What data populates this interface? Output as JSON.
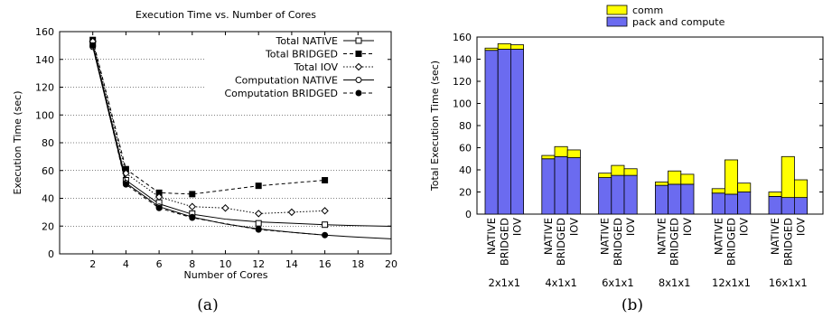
{
  "chart_data": [
    {
      "type": "line",
      "title": "Execution Time vs. Number of Cores",
      "xlabel": "Number of Cores",
      "ylabel": "Execution Time (sec)",
      "xlim": [
        0,
        20
      ],
      "ylim": [
        0,
        160
      ],
      "xticks": [
        2,
        4,
        6,
        8,
        10,
        12,
        14,
        16,
        18,
        20
      ],
      "yticks": [
        0,
        20,
        40,
        60,
        80,
        100,
        120,
        140,
        160
      ],
      "grid": "horizontal-dotted",
      "legend_position": "top-right",
      "caption": "(a)",
      "series": [
        {
          "name": "Total NATIVE",
          "style": "solid",
          "marker": "open-square",
          "x": [
            2,
            4,
            6,
            8,
            12,
            16
          ],
          "y": [
            151,
            53,
            37,
            29,
            22,
            21
          ],
          "fit": {
            "x": [
              2,
              4,
              6,
              8,
              10,
              12,
              14,
              16,
              18,
              20
            ],
            "y": [
              151,
              53,
              36,
              28.5,
              25,
              23,
              22,
              21,
              20.3,
              19.8
            ]
          }
        },
        {
          "name": "Total BRIDGED",
          "style": "dashed",
          "marker": "filled-square",
          "x": [
            2,
            4,
            6,
            8,
            12,
            16
          ],
          "y": [
            154,
            61,
            44,
            43,
            49,
            53
          ],
          "fit": {
            "x": [
              2,
              4,
              6,
              8,
              12,
              16
            ],
            "y": [
              154,
              61,
              44,
              43,
              49,
              53
            ]
          }
        },
        {
          "name": "Total IOV",
          "style": "dotted",
          "marker": "diamond",
          "x": [
            2,
            4,
            6,
            8,
            10,
            12,
            14,
            16
          ],
          "y": [
            153,
            58,
            41,
            34,
            33,
            29,
            30,
            31
          ],
          "fit": {
            "x": [
              2,
              4,
              6,
              8,
              10,
              12,
              14,
              16
            ],
            "y": [
              153,
              58,
              41,
              34,
              33,
              29,
              30,
              31
            ]
          }
        },
        {
          "name": "Computation NATIVE",
          "style": "solid",
          "marker": "open-circle",
          "x": [
            2,
            4,
            6,
            8,
            12
          ],
          "y": [
            149,
            51,
            34,
            26.5,
            18
          ],
          "fit": {
            "x": [
              2,
              4,
              6,
              8,
              10,
              12,
              14,
              16,
              18,
              20
            ],
            "y": [
              149,
              51,
              34,
              26.5,
              21.5,
              18,
              15.5,
              13.5,
              12,
              10.8
            ]
          }
        },
        {
          "name": "Computation BRIDGED",
          "style": "dashed",
          "marker": "filled-circle",
          "x": [
            2,
            4,
            6,
            8,
            12,
            16
          ],
          "y": [
            150,
            50,
            33,
            26,
            17.5,
            13.5
          ],
          "fit": {
            "x": [
              2,
              4,
              6,
              8,
              12,
              16
            ],
            "y": [
              150,
              50,
              33,
              26,
              17.5,
              13.5
            ]
          }
        }
      ]
    },
    {
      "type": "bar",
      "stacked": true,
      "ylabel": "Total Execution Time (sec)",
      "ylim": [
        0,
        160
      ],
      "yticks": [
        0,
        20,
        40,
        60,
        80,
        100,
        120,
        140,
        160
      ],
      "legend_position": "top-center",
      "caption": "(b)",
      "groups": [
        "2x1x1",
        "4x1x1",
        "6x1x1",
        "8x1x1",
        "12x1x1",
        "16x1x1"
      ],
      "bar_labels": [
        "NATIVE",
        "BRIDGED",
        "IOV"
      ],
      "series": [
        {
          "name": "pack and compute",
          "color": "#6b6bf0",
          "values": [
            [
              148,
              149,
              149
            ],
            [
              50,
              52,
              51
            ],
            [
              33,
              35,
              35
            ],
            [
              26,
              27,
              27
            ],
            [
              19,
              18,
              20
            ],
            [
              16,
              15,
              15
            ]
          ]
        },
        {
          "name": "comm",
          "color": "#ffff00",
          "values": [
            [
              2,
              5,
              4
            ],
            [
              3,
              9,
              7
            ],
            [
              4,
              9,
              6
            ],
            [
              3,
              12,
              9
            ],
            [
              4,
              31,
              8
            ],
            [
              4,
              37,
              16
            ]
          ]
        }
      ]
    }
  ]
}
